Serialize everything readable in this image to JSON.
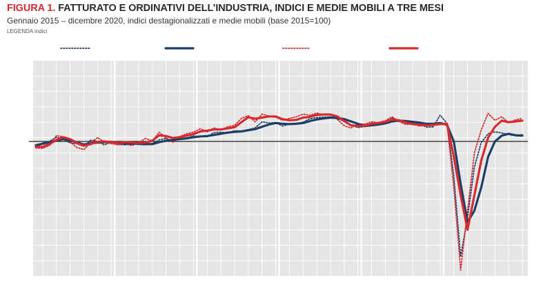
{
  "header": {
    "figure_label": "FIGURA 1.",
    "title": "FATTURATO E ORDINATIVI DELL’INDUSTRIA, INDICI E MEDIE MOBILI A TRE MESI",
    "subtitle": "Gennaio 2015 – dicembre 2020, indici destagionalizzati e medie mobili (base 2015=100)",
    "legend_fragment": "LEGENDA indici"
  },
  "colors": {
    "navy": "#1d3f66",
    "red": "#d62a2f",
    "plot_bg": "#e6e6e6",
    "grid": "#ffffff",
    "baseline": "#222222"
  },
  "chart_data": {
    "type": "line",
    "x": [
      "2015-01",
      "2015-02",
      "2015-03",
      "2015-04",
      "2015-05",
      "2015-06",
      "2015-07",
      "2015-08",
      "2015-09",
      "2015-10",
      "2015-11",
      "2015-12",
      "2016-01",
      "2016-02",
      "2016-03",
      "2016-04",
      "2016-05",
      "2016-06",
      "2016-07",
      "2016-08",
      "2016-09",
      "2016-10",
      "2016-11",
      "2016-12",
      "2017-01",
      "2017-02",
      "2017-03",
      "2017-04",
      "2017-05",
      "2017-06",
      "2017-07",
      "2017-08",
      "2017-09",
      "2017-10",
      "2017-11",
      "2017-12",
      "2018-01",
      "2018-02",
      "2018-03",
      "2018-04",
      "2018-05",
      "2018-06",
      "2018-07",
      "2018-08",
      "2018-09",
      "2018-10",
      "2018-11",
      "2018-12",
      "2019-01",
      "2019-02",
      "2019-03",
      "2019-04",
      "2019-05",
      "2019-06",
      "2019-07",
      "2019-08",
      "2019-09",
      "2019-10",
      "2019-11",
      "2019-12",
      "2020-01",
      "2020-02",
      "2020-03",
      "2020-04",
      "2020-05",
      "2020-06",
      "2020-07",
      "2020-08",
      "2020-09",
      "2020-10",
      "2020-11",
      "2020-12"
    ],
    "ylim": [
      65,
      121
    ],
    "baseline": 100,
    "year_boundaries": [
      "2016-01",
      "2017-01",
      "2018-01",
      "2019-01",
      "2020-01"
    ],
    "grid": true,
    "series": [
      {
        "style": "dotted",
        "color": "navy",
        "values": [
          98.5,
          99.6,
          100.0,
          101.1,
          100.6,
          99.6,
          99.4,
          98.7,
          100.3,
          100.0,
          99.1,
          99.8,
          99.3,
          99.1,
          99.4,
          99.2,
          99.1,
          99.5,
          100.4,
          100.8,
          100.1,
          100.6,
          100.9,
          101.4,
          101.3,
          101.2,
          102.3,
          102.4,
          102.2,
          102.8,
          102.7,
          103.1,
          103.5,
          105.1,
          104.8,
          104.9,
          104.0,
          104.5,
          104.7,
          105.0,
          105.9,
          106.2,
          106.3,
          106.4,
          105.9,
          105.3,
          104.3,
          103.6,
          103.9,
          104.4,
          104.7,
          104.9,
          106.1,
          105.3,
          104.9,
          105.0,
          104.6,
          103.7,
          103.8,
          106.8,
          104.7,
          91.0,
          70.0,
          80.2,
          93.3,
          99.7,
          102.0,
          102.5,
          102.2,
          101.8,
          101.5,
          101.8
        ]
      },
      {
        "style": "solid",
        "color": "navy",
        "values": [
          99.0,
          99.4,
          99.8,
          100.2,
          100.6,
          100.2,
          99.8,
          99.2,
          99.5,
          99.7,
          99.8,
          99.9,
          99.6,
          99.4,
          99.4,
          99.4,
          99.3,
          99.3,
          99.8,
          100.2,
          100.4,
          100.6,
          100.8,
          101.1,
          101.3,
          101.4,
          101.7,
          102.0,
          102.3,
          102.5,
          102.6,
          102.9,
          103.2,
          103.8,
          104.4,
          104.8,
          104.6,
          104.5,
          104.6,
          104.8,
          105.3,
          105.7,
          106.0,
          106.2,
          106.1,
          105.8,
          105.2,
          104.6,
          104.0,
          104.2,
          104.4,
          104.7,
          105.2,
          105.4,
          105.3,
          105.1,
          104.9,
          104.6,
          104.6,
          104.8,
          104.3,
          100.0,
          89.0,
          79.0,
          82.0,
          88.0,
          96.0,
          100.0,
          101.5,
          102.0,
          101.6,
          101.5
        ]
      },
      {
        "style": "dotted",
        "color": "red",
        "values": [
          98.3,
          98.2,
          99.0,
          101.5,
          101.2,
          99.9,
          98.4,
          97.9,
          99.6,
          101.0,
          99.8,
          99.4,
          99.1,
          99.4,
          98.9,
          99.7,
          100.8,
          100.1,
          102.4,
          100.9,
          99.8,
          101.3,
          102.0,
          102.4,
          103.3,
          102.5,
          103.5,
          103.0,
          103.8,
          104.2,
          106.0,
          106.7,
          105.1,
          107.1,
          106.6,
          106.3,
          105.5,
          106.0,
          106.4,
          107.1,
          106.8,
          107.4,
          106.9,
          107.0,
          105.7,
          104.1,
          103.5,
          104.6,
          104.5,
          105.1,
          104.9,
          105.4,
          106.4,
          105.2,
          104.4,
          104.5,
          104.0,
          104.2,
          104.2,
          104.9,
          104.6,
          88.0,
          66.5,
          82.0,
          97.0,
          103.0,
          107.3,
          105.5,
          106.4,
          104.9,
          105.6,
          106.0
        ]
      },
      {
        "style": "solid",
        "color": "red",
        "values": [
          98.6,
          98.6,
          99.3,
          100.4,
          101.1,
          100.6,
          99.6,
          98.9,
          99.3,
          99.9,
          100.0,
          99.8,
          99.6,
          99.8,
          99.7,
          99.6,
          99.7,
          100.2,
          101.6,
          101.4,
          100.9,
          101.1,
          101.5,
          101.9,
          102.6,
          102.8,
          103.1,
          103.1,
          103.4,
          103.7,
          105.0,
          106.3,
          105.9,
          106.2,
          106.5,
          106.5,
          105.8,
          105.5,
          105.6,
          106.2,
          106.4,
          106.9,
          107.0,
          107.0,
          106.5,
          105.3,
          104.2,
          104.0,
          104.1,
          104.6,
          104.8,
          105.1,
          105.7,
          105.5,
          104.9,
          104.5,
          104.3,
          104.2,
          104.3,
          104.5,
          104.6,
          96.0,
          86.0,
          77.0,
          86.0,
          95.0,
          101.0,
          103.8,
          105.4,
          105.0,
          105.2,
          105.4
        ]
      }
    ]
  }
}
